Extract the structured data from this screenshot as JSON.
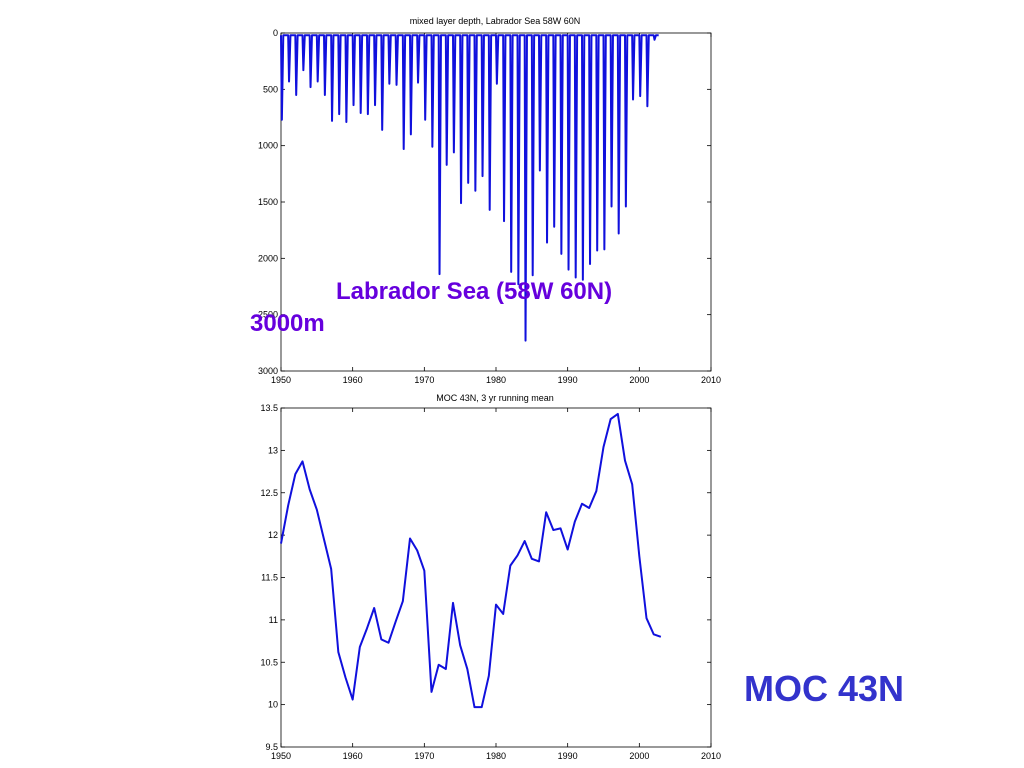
{
  "colors": {
    "line": "#1010dd",
    "annotation_purple": "#6600dd",
    "annotation_blue": "#3333cc",
    "axis": "#000000"
  },
  "annotations": {
    "labrador": "Labrador Sea (58W 60N)",
    "depth_3000": "3000m",
    "moc": "MOC 43N"
  },
  "chart_data": [
    {
      "type": "line",
      "title": "mixed layer depth, Labrador Sea 58W 60N",
      "xlabel": "",
      "ylabel": "",
      "xlim": [
        1950,
        2010
      ],
      "ylim": [
        0,
        3000
      ],
      "y_inverted": true,
      "grid": false,
      "xticks": [
        1950,
        1960,
        1970,
        1980,
        1990,
        2000,
        2010
      ],
      "yticks": [
        0,
        500,
        1000,
        1500,
        2000,
        2500,
        3000
      ],
      "series": [
        {
          "annual_winter_max_depth": {
            "x": [
              1950,
              1951,
              1952,
              1953,
              1954,
              1955,
              1956,
              1957,
              1958,
              1959,
              1960,
              1961,
              1962,
              1963,
              1964,
              1965,
              1966,
              1967,
              1968,
              1969,
              1970,
              1971,
              1972,
              1973,
              1974,
              1975,
              1976,
              1977,
              1978,
              1979,
              1980,
              1981,
              1982,
              1983,
              1984,
              1985,
              1986,
              1987,
              1988,
              1989,
              1990,
              1991,
              1992,
              1993,
              1994,
              1995,
              1996,
              1997,
              1998,
              1999,
              2000,
              2001,
              2002
            ],
            "y": [
              770,
              430,
              550,
              330,
              480,
              430,
              550,
              780,
              720,
              790,
              640,
              710,
              720,
              640,
              860,
              450,
              460,
              1030,
              900,
              440,
              770,
              1010,
              2140,
              1170,
              1060,
              1510,
              1330,
              1400,
              1270,
              1570,
              450,
              1670,
              2120,
              2230,
              2730,
              2150,
              1220,
              1860,
              1720,
              1960,
              2100,
              2170,
              2190,
              2050,
              1930,
              1920,
              1540,
              1780,
              1540,
              590,
              560,
              650,
              60
            ]
          },
          "summer_min_depth": 20
        }
      ]
    },
    {
      "type": "line",
      "title": "MOC 43N, 3 yr running mean",
      "xlabel": "",
      "ylabel": "",
      "xlim": [
        1950,
        2010
      ],
      "ylim": [
        9.5,
        13.5
      ],
      "grid": false,
      "xticks": [
        1950,
        1960,
        1970,
        1980,
        1990,
        2000,
        2010
      ],
      "yticks": [
        9.5,
        10,
        10.5,
        11,
        11.5,
        12,
        12.5,
        13,
        13.5
      ],
      "x": [
        1950,
        1951,
        1952,
        1953,
        1954,
        1955,
        1956,
        1957,
        1958,
        1959,
        1960,
        1961,
        1962,
        1963,
        1964,
        1965,
        1966,
        1967,
        1968,
        1969,
        1970,
        1971,
        1972,
        1973,
        1974,
        1975,
        1976,
        1977,
        1978,
        1979,
        1980,
        1981,
        1982,
        1983,
        1984,
        1985,
        1986,
        1987,
        1988,
        1989,
        1990,
        1991,
        1992,
        1993,
        1994,
        1995,
        1996,
        1997,
        1998,
        1999,
        2000,
        2001,
        2002,
        2003
      ],
      "series": [
        {
          "values": [
            11.9,
            12.35,
            12.72,
            12.87,
            12.54,
            12.3,
            11.95,
            11.6,
            10.62,
            10.32,
            10.06,
            10.68,
            10.9,
            11.14,
            10.77,
            10.73,
            10.98,
            11.22,
            11.96,
            11.82,
            11.58,
            10.15,
            10.47,
            10.42,
            11.2,
            10.7,
            10.42,
            9.97,
            9.97,
            10.34,
            11.18,
            11.07,
            11.64,
            11.76,
            11.93,
            11.72,
            11.69,
            12.27,
            12.06,
            12.08,
            11.83,
            12.16,
            12.37,
            12.32,
            12.52,
            13.04,
            13.37,
            13.43,
            12.88,
            12.6,
            11.75,
            11.02,
            10.83,
            10.8
          ]
        }
      ]
    }
  ]
}
